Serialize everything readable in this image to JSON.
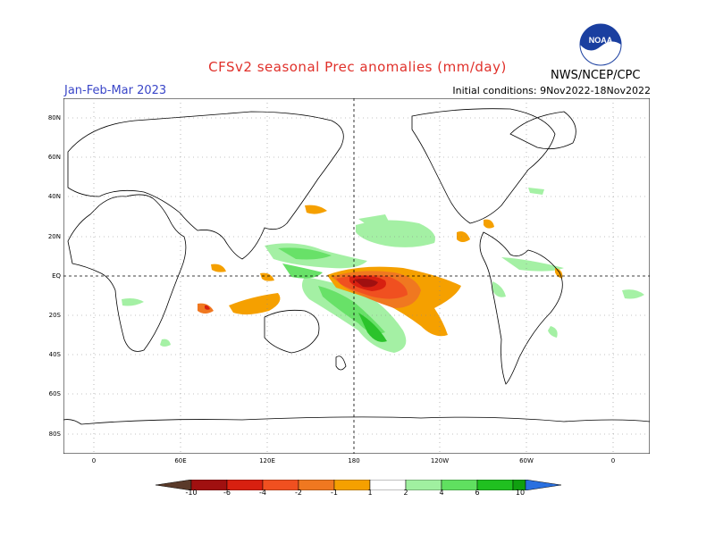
{
  "header": {
    "title": "CFSv2 seasonal Prec anomalies (mm/day)",
    "season": "Jan-Feb-Mar 2023",
    "initial_conditions": "Initial conditions: 9Nov2022-18Nov2022",
    "org": "NWS/NCEP/CPC",
    "logo_text": "NOAA"
  },
  "map": {
    "lat_labels": [
      "80N",
      "60N",
      "40N",
      "20N",
      "EQ",
      "20S",
      "40S",
      "60S",
      "80S"
    ],
    "lon_labels": [
      "0",
      "60E",
      "120E",
      "180",
      "120W",
      "60W",
      "0"
    ]
  },
  "colorbar": {
    "labels": [
      "-10",
      "-6",
      "-4",
      "-2",
      "-1",
      "1",
      "2",
      "4",
      "6",
      "10"
    ],
    "colors": [
      "#5a3a2a",
      "#a01010",
      "#d82010",
      "#f05020",
      "#f07820",
      "#f5a000",
      "#ffffff",
      "#a0f0a0",
      "#60e060",
      "#20c020",
      "#10a010",
      "#2a70e0"
    ]
  }
}
